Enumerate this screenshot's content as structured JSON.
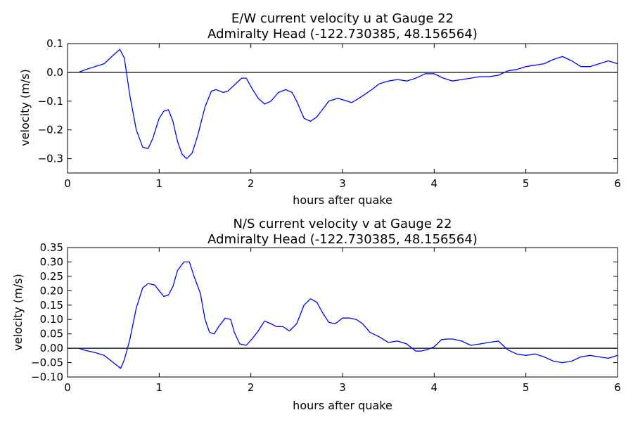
{
  "chart_data": [
    {
      "type": "line",
      "title": "E/W current velocity u at Gauge 22",
      "subtitle": "Admiralty Head  (-122.730385, 48.156564)",
      "xlabel": "hours after quake",
      "ylabel": "velocity (m/s)",
      "xlim": [
        0,
        6
      ],
      "ylim": [
        -0.35,
        0.1
      ],
      "xticks": [
        "0",
        "1",
        "2",
        "3",
        "4",
        "5",
        "6"
      ],
      "yticks": [
        "0.1",
        "0.0",
        "−0.1",
        "−0.2",
        "−0.3"
      ],
      "ytick_values": [
        0.1,
        0.0,
        -0.1,
        -0.2,
        -0.3
      ],
      "grid": false,
      "zero_line": true,
      "line_color": "#0000ff",
      "series": [
        {
          "x": [
            0.12,
            0.2,
            0.3,
            0.4,
            0.5,
            0.57,
            0.62,
            0.68,
            0.75,
            0.82,
            0.88,
            0.93,
            1.0,
            1.05,
            1.1,
            1.15,
            1.2,
            1.25,
            1.3,
            1.36,
            1.42,
            1.5,
            1.57,
            1.62,
            1.7,
            1.75,
            1.8,
            1.9,
            1.95,
            2.02,
            2.08,
            2.15,
            2.22,
            2.3,
            2.38,
            2.45,
            2.5,
            2.58,
            2.65,
            2.72,
            2.78,
            2.85,
            2.95,
            3.05,
            3.1,
            3.18,
            3.25,
            3.32,
            3.4,
            3.5,
            3.6,
            3.7,
            3.8,
            3.9,
            4.0,
            4.1,
            4.2,
            4.3,
            4.4,
            4.5,
            4.6,
            4.7,
            4.8,
            4.9,
            5.0,
            5.1,
            5.2,
            5.3,
            5.4,
            5.5,
            5.6,
            5.7,
            5.8,
            5.9,
            6.0
          ],
          "values": [
            0.0,
            0.01,
            0.02,
            0.03,
            0.06,
            0.08,
            0.05,
            -0.08,
            -0.2,
            -0.26,
            -0.265,
            -0.23,
            -0.16,
            -0.135,
            -0.13,
            -0.17,
            -0.24,
            -0.285,
            -0.3,
            -0.28,
            -0.22,
            -0.12,
            -0.065,
            -0.06,
            -0.07,
            -0.065,
            -0.05,
            -0.02,
            -0.02,
            -0.06,
            -0.09,
            -0.11,
            -0.1,
            -0.07,
            -0.06,
            -0.07,
            -0.1,
            -0.16,
            -0.17,
            -0.155,
            -0.13,
            -0.1,
            -0.09,
            -0.1,
            -0.105,
            -0.09,
            -0.075,
            -0.06,
            -0.04,
            -0.03,
            -0.025,
            -0.03,
            -0.02,
            -0.005,
            -0.005,
            -0.02,
            -0.03,
            -0.025,
            -0.02,
            -0.015,
            -0.015,
            -0.01,
            0.005,
            0.01,
            0.02,
            0.025,
            0.03,
            0.045,
            0.055,
            0.04,
            0.02,
            0.02,
            0.03,
            0.04,
            0.03
          ]
        }
      ]
    },
    {
      "type": "line",
      "title": "N/S current velocity v at Gauge 22",
      "subtitle": "Admiralty Head  (-122.730385, 48.156564)",
      "xlabel": "hours after quake",
      "ylabel": "velocity (m/s)",
      "xlim": [
        0,
        6
      ],
      "ylim": [
        -0.1,
        0.35
      ],
      "xticks": [
        "0",
        "1",
        "2",
        "3",
        "4",
        "5",
        "6"
      ],
      "yticks": [
        "0.35",
        "0.30",
        "0.25",
        "0.20",
        "0.15",
        "0.10",
        "0.05",
        "0.00",
        "−0.05",
        "−0.10"
      ],
      "ytick_values": [
        0.35,
        0.3,
        0.25,
        0.2,
        0.15,
        0.1,
        0.05,
        0.0,
        -0.05,
        -0.1
      ],
      "grid": false,
      "zero_line": true,
      "line_color": "#0000ff",
      "series": [
        {
          "x": [
            0.12,
            0.2,
            0.3,
            0.4,
            0.5,
            0.58,
            0.62,
            0.68,
            0.75,
            0.82,
            0.88,
            0.95,
            1.0,
            1.05,
            1.1,
            1.15,
            1.2,
            1.27,
            1.33,
            1.38,
            1.45,
            1.5,
            1.55,
            1.6,
            1.65,
            1.72,
            1.78,
            1.82,
            1.88,
            1.95,
            2.02,
            2.08,
            2.15,
            2.22,
            2.28,
            2.35,
            2.42,
            2.5,
            2.58,
            2.65,
            2.72,
            2.78,
            2.85,
            2.92,
            3.0,
            3.08,
            3.15,
            3.22,
            3.3,
            3.4,
            3.5,
            3.6,
            3.7,
            3.8,
            3.85,
            3.92,
            4.0,
            4.08,
            4.15,
            4.2,
            4.3,
            4.4,
            4.5,
            4.6,
            4.7,
            4.8,
            4.9,
            5.0,
            5.1,
            5.2,
            5.3,
            5.4,
            5.5,
            5.6,
            5.7,
            5.8,
            5.9,
            6.0
          ],
          "values": [
            0.0,
            -0.008,
            -0.015,
            -0.025,
            -0.05,
            -0.07,
            -0.04,
            0.03,
            0.14,
            0.21,
            0.225,
            0.22,
            0.2,
            0.18,
            0.185,
            0.215,
            0.27,
            0.3,
            0.3,
            0.25,
            0.19,
            0.1,
            0.055,
            0.05,
            0.075,
            0.105,
            0.1,
            0.055,
            0.015,
            0.01,
            0.035,
            0.06,
            0.095,
            0.085,
            0.075,
            0.075,
            0.06,
            0.085,
            0.15,
            0.172,
            0.16,
            0.125,
            0.09,
            0.085,
            0.105,
            0.105,
            0.1,
            0.085,
            0.055,
            0.04,
            0.02,
            0.025,
            0.015,
            -0.01,
            -0.01,
            -0.005,
            0.005,
            0.03,
            0.032,
            0.032,
            0.025,
            0.01,
            0.015,
            0.02,
            0.025,
            -0.005,
            -0.02,
            -0.025,
            -0.02,
            -0.03,
            -0.045,
            -0.05,
            -0.045,
            -0.03,
            -0.025,
            -0.03,
            -0.035,
            -0.025
          ]
        }
      ]
    }
  ]
}
